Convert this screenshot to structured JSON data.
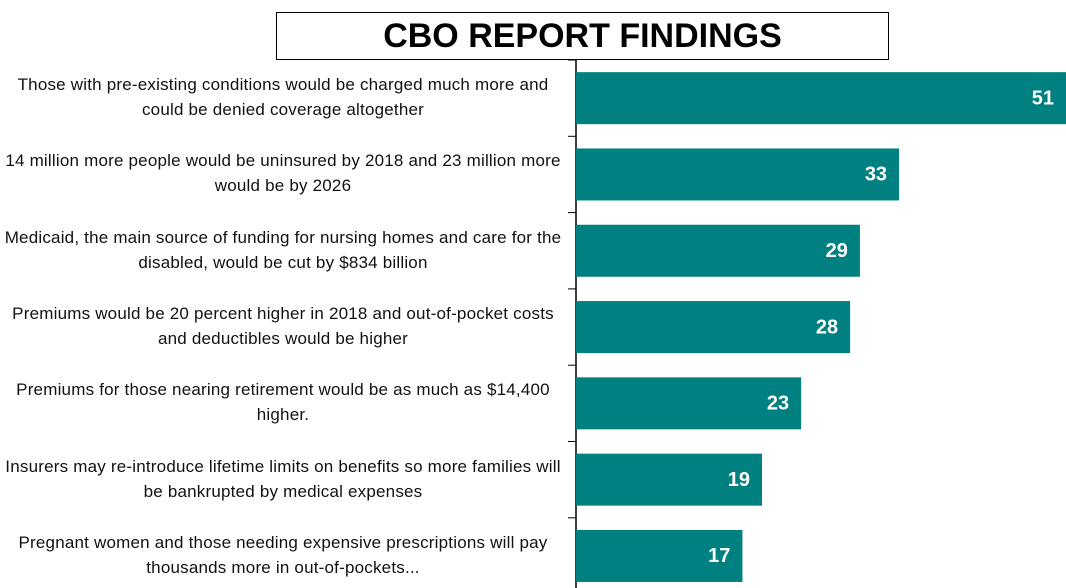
{
  "chart_data": {
    "type": "bar",
    "orientation": "horizontal",
    "title": "CBO REPORT FINDINGS",
    "categories": [
      "Those with pre-existing conditions would be charged much more and could be denied coverage altogether",
      "14 million more people would be uninsured by 2018 and 23 million more would be by 2026",
      "Medicaid, the main source of funding for nursing homes and care for the disabled, would be cut by $834 billion",
      "Premiums would be 20 percent higher in 2018 and out-of-pocket costs and deductibles would be higher",
      "Premiums for those nearing retirement would be as much as $14,400 higher.",
      "Insurers may re-introduce lifetime limits on benefits so more families will be bankrupted by medical expenses",
      "Pregnant women and those needing expensive prescriptions will pay thousands more in out-of-pockets..."
    ],
    "values": [
      51,
      33,
      29,
      28,
      23,
      19,
      17
    ],
    "color": "#008080"
  }
}
